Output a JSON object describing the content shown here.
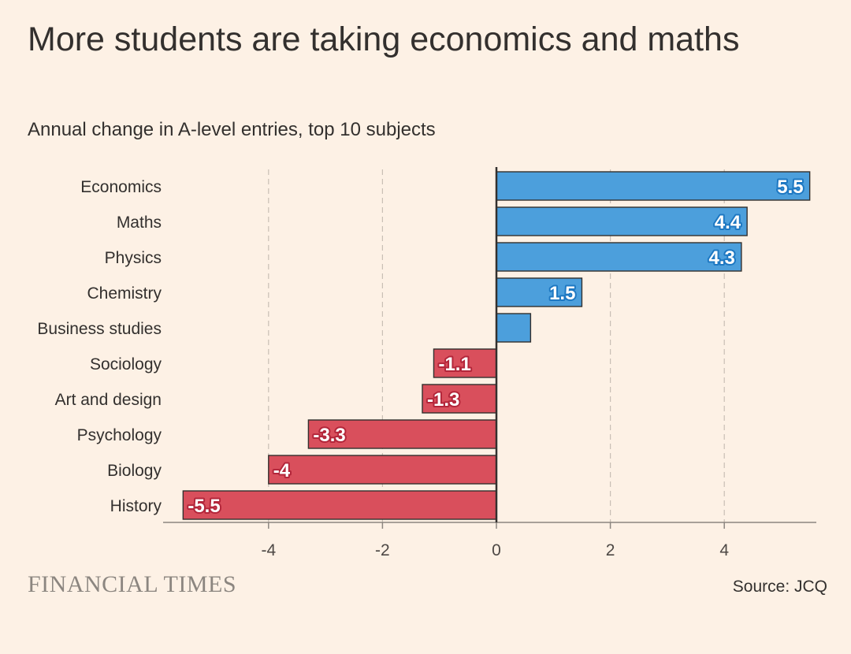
{
  "header": {
    "title": "More students are taking economics and maths",
    "subtitle": "Annual change in A-level entries, top 10 subjects"
  },
  "footer": {
    "brand": "FINANCIAL TIMES",
    "source": "Source: JCQ"
  },
  "colors": {
    "positive": "#4c9fdc",
    "negative": "#d94f5c",
    "background": "#fdf1e5",
    "text": "#33302e",
    "grid": "#c9bfb5"
  },
  "chart_data": {
    "type": "bar",
    "orientation": "horizontal",
    "categories": [
      "Economics",
      "Maths",
      "Physics",
      "Chemistry",
      "Business studies",
      "Sociology",
      "Art and design",
      "Psychology",
      "Biology",
      "History"
    ],
    "values": [
      5.5,
      4.4,
      4.3,
      1.5,
      0.6,
      -1.1,
      -1.3,
      -3.3,
      -4,
      -5.5
    ],
    "data_labels": [
      "5.5",
      "4.4",
      "4.3",
      "1.5",
      "",
      "-1.1",
      "-1.3",
      "-3.3",
      "-4",
      "-5.5"
    ],
    "x_ticks": [
      -4,
      -2,
      0,
      2,
      4
    ],
    "x_tick_labels": [
      "-4",
      "-2",
      "0",
      "2",
      "4"
    ],
    "xlim": [
      -5.5,
      5.6
    ],
    "grid": true
  }
}
